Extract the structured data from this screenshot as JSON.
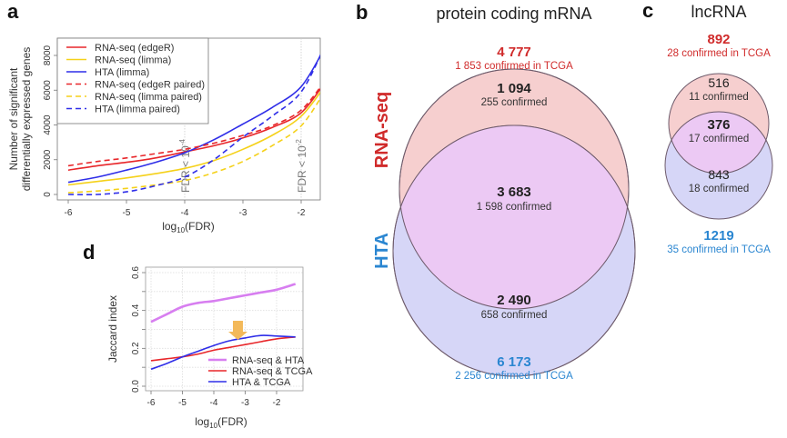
{
  "panels": {
    "a": {
      "label": "a"
    },
    "b": {
      "label": "b",
      "title": "protein coding mRNA"
    },
    "c": {
      "label": "c",
      "title": "lncRNA"
    },
    "d": {
      "label": "d"
    }
  },
  "colors": {
    "red": "#e8262a",
    "yellow": "#f5d11a",
    "blue": "#2f2ee8",
    "violet": "#d77ef0",
    "rna_circle": "#f6cfcf",
    "hta_circle": "#d6d6f7",
    "overlap": "#ecc9f4",
    "rna_text": "#d02b2b",
    "hta_text": "#2a86d1",
    "arrow": "#f3b95a"
  },
  "chart_data": [
    {
      "id": "a",
      "type": "line",
      "title": "",
      "xlabel": "log10(FDR)",
      "ylabel": "Number of significant differentially expressed genes",
      "xlim": [
        -6,
        -1.4
      ],
      "ylim": [
        0,
        8800
      ],
      "xticks": [
        -6,
        -5,
        -4,
        -3,
        -2
      ],
      "yticks": [
        0,
        2000,
        4000,
        6000,
        8000
      ],
      "grid": false,
      "legend_position": "top-left",
      "annotations": [
        {
          "text": "FDR < 10^-4",
          "x": -4
        },
        {
          "text": "FDR < 10^-2",
          "x": -2
        }
      ],
      "x": [
        -6,
        -5.5,
        -5,
        -4.5,
        -4,
        -3.5,
        -3,
        -2.5,
        -2,
        -1.6
      ],
      "series": [
        {
          "name": "RNA-seq (edgeR)",
          "color": "red",
          "dash": false,
          "values": [
            1400,
            1650,
            1850,
            2100,
            2450,
            2800,
            3250,
            3850,
            4700,
            6400
          ]
        },
        {
          "name": "RNA-seq (limma)",
          "color": "yellow",
          "dash": false,
          "values": [
            550,
            750,
            950,
            1200,
            1500,
            1950,
            2600,
            3400,
            4500,
            6200
          ]
        },
        {
          "name": "HTA (limma)",
          "color": "blue",
          "dash": false,
          "values": [
            700,
            1000,
            1400,
            1850,
            2400,
            3150,
            4050,
            5000,
            6200,
            8400
          ]
        },
        {
          "name": "RNA-seq (edgeR paired)",
          "color": "red",
          "dash": true,
          "values": [
            1650,
            1900,
            2100,
            2350,
            2600,
            2950,
            3400,
            3950,
            4850,
            6500
          ]
        },
        {
          "name": "RNA-seq (limma paired)",
          "color": "yellow",
          "dash": true,
          "values": [
            100,
            200,
            350,
            550,
            800,
            1250,
            1900,
            2800,
            3950,
            5900
          ]
        },
        {
          "name": "HTA (limma paired)",
          "color": "blue",
          "dash": true,
          "values": [
            0,
            0,
            150,
            500,
            1000,
            2000,
            3300,
            4500,
            5900,
            8500
          ]
        }
      ]
    },
    {
      "id": "d",
      "type": "line",
      "title": "",
      "xlabel": "log10(FDR)",
      "ylabel": "Jaccard index",
      "xlim": [
        -6.1,
        -1.3
      ],
      "ylim": [
        -0.03,
        0.63
      ],
      "xticks": [
        -6,
        -5,
        -4,
        -3,
        -2
      ],
      "yticks": [
        0.0,
        0.2,
        0.4,
        0.6
      ],
      "grid": true,
      "legend_position": "bottom-right",
      "annotations": [
        {
          "text": "arrow",
          "x": -3.2
        }
      ],
      "x": [
        -6,
        -5.5,
        -5,
        -4.5,
        -4,
        -3.5,
        -3,
        -2.5,
        -2,
        -1.4
      ],
      "series": [
        {
          "name": "RNA-seq & HTA",
          "color": "violet",
          "values": [
            0.34,
            0.38,
            0.42,
            0.44,
            0.45,
            0.465,
            0.48,
            0.495,
            0.51,
            0.54
          ]
        },
        {
          "name": "RNA-seq & TCGA",
          "color": "red",
          "values": [
            0.135,
            0.145,
            0.155,
            0.17,
            0.19,
            0.205,
            0.22,
            0.235,
            0.25,
            0.26
          ]
        },
        {
          "name": "HTA & TCGA",
          "color": "blue",
          "values": [
            0.09,
            0.12,
            0.155,
            0.185,
            0.215,
            0.24,
            0.255,
            0.268,
            0.265,
            0.26
          ]
        }
      ]
    }
  ],
  "venn_mrna": {
    "rna_label": "RNA-seq",
    "hta_label": "HTA",
    "rna_total": "4 777",
    "rna_total_sub": "1 853 confirmed in TCGA",
    "rna_only": "1 094",
    "rna_only_sub": "255 confirmed",
    "overlap": "3 683",
    "overlap_sub": "1 598 confirmed",
    "hta_only": "2 490",
    "hta_only_sub": "658 confirmed",
    "hta_total": "6 173",
    "hta_total_sub": "2 256 confirmed in TCGA"
  },
  "venn_lnc": {
    "rna_total": "892",
    "rna_total_sub": "28 confirmed in TCGA",
    "rna_only": "516",
    "rna_only_sub": "11 confirmed",
    "overlap": "376",
    "overlap_sub": "17 confirmed",
    "hta_only": "843",
    "hta_only_sub": "18 confirmed",
    "hta_total": "1219",
    "hta_total_sub": "35 confirmed in TCGA"
  }
}
